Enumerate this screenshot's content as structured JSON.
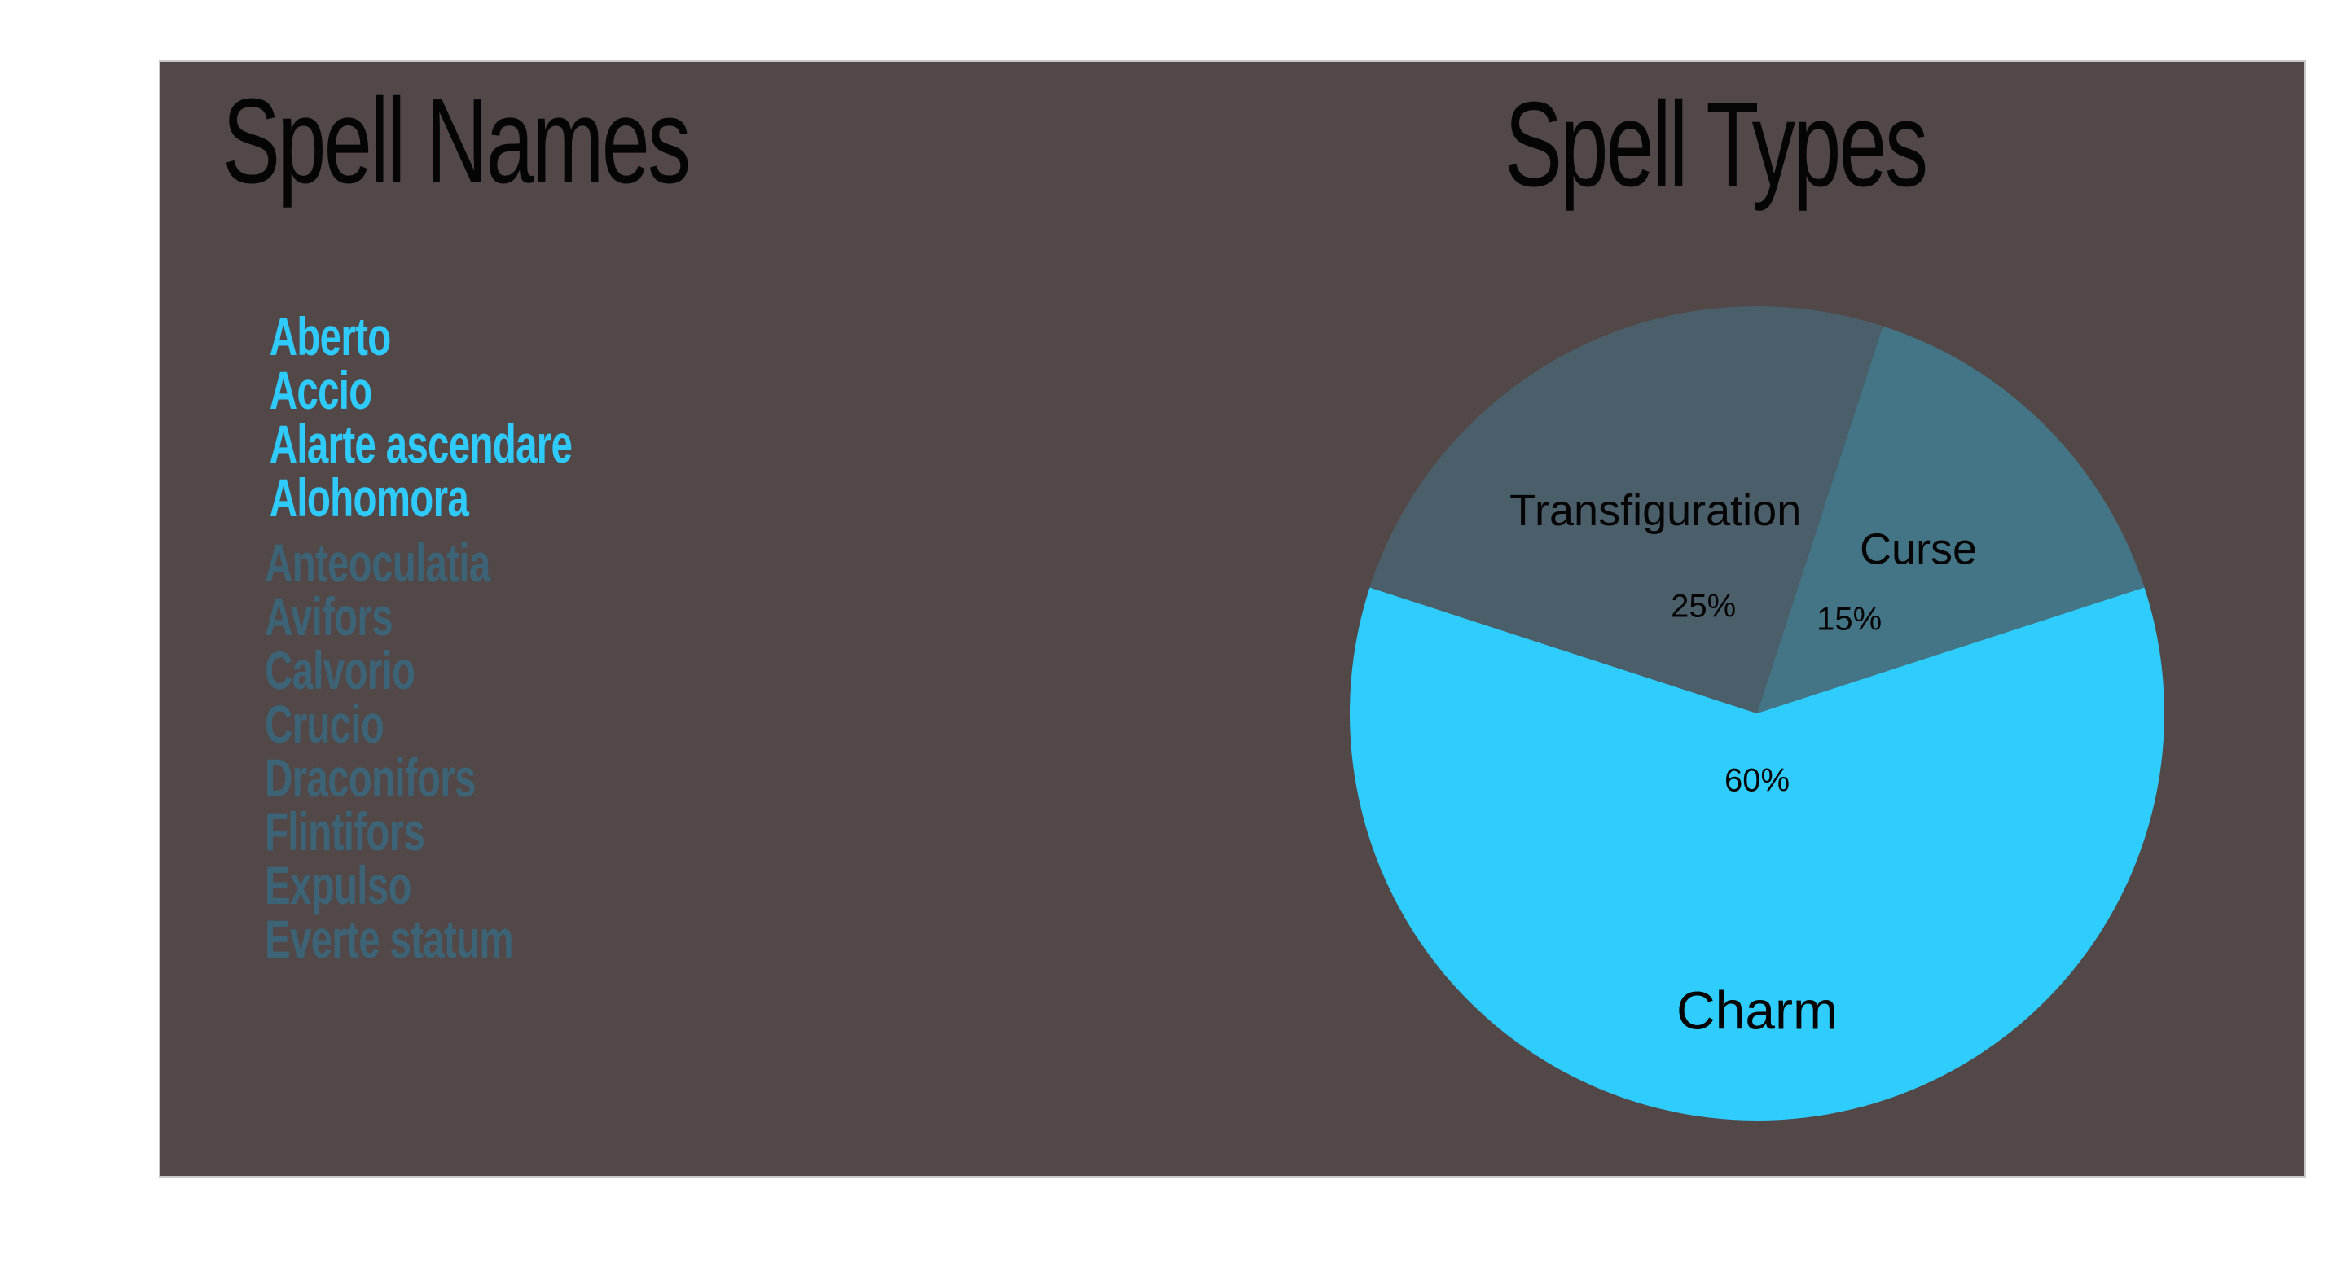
{
  "left_title": "Spell Names",
  "spells": [
    {
      "name": "Aberto",
      "highlighted": true
    },
    {
      "name": "Accio",
      "highlighted": true
    },
    {
      "name": "Alarte ascendare",
      "highlighted": true
    },
    {
      "name": "Alohomora",
      "highlighted": true
    },
    {
      "name": "Anteoculatia",
      "highlighted": false
    },
    {
      "name": "Avifors",
      "highlighted": false
    },
    {
      "name": "Calvorio",
      "highlighted": false
    },
    {
      "name": "Crucio",
      "highlighted": false
    },
    {
      "name": "Draconifors",
      "highlighted": false
    },
    {
      "name": "Flintifors",
      "highlighted": false
    },
    {
      "name": "Expulso",
      "highlighted": false
    },
    {
      "name": "Everte statum",
      "highlighted": false
    }
  ],
  "colors": {
    "panel_background": "#524848",
    "highlight_text": "#2ecbfc",
    "dim_text": "#3c6376",
    "title_text": "#050505"
  },
  "chart_data": {
    "type": "pie",
    "title": "Spell Types",
    "slices": [
      {
        "label": "Curse",
        "value": 15,
        "value_label": "15%",
        "color": "#437586"
      },
      {
        "label": "Charm",
        "value": 60,
        "value_label": "60%",
        "color": "#2ecdfd"
      },
      {
        "label": "Transfiguration",
        "value": 25,
        "value_label": "25%",
        "color": "#4a5f69"
      }
    ]
  }
}
